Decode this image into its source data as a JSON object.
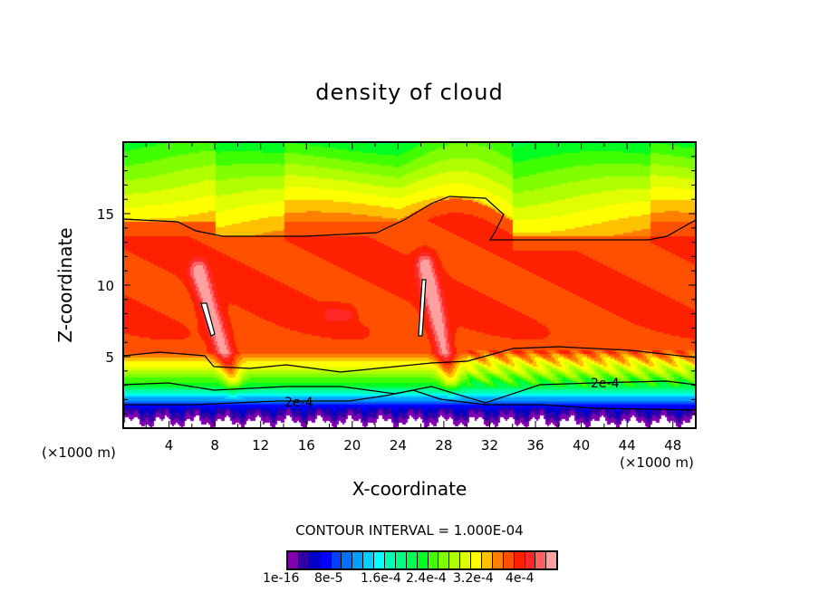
{
  "chart_data": {
    "type": "heatmap",
    "title": "density of cloud",
    "xlabel": "X-coordinate",
    "ylabel": "Z-coordinate",
    "x_unit": "(×1000 m)",
    "y_unit": "(×1000 m)",
    "xlim": [
      0,
      50
    ],
    "ylim": [
      0,
      20
    ],
    "x_ticks": [
      4,
      8,
      12,
      16,
      20,
      24,
      28,
      32,
      36,
      40,
      44,
      48
    ],
    "y_ticks": [
      5,
      10,
      15
    ],
    "contour_interval_label": "CONTOUR INTERVAL = 1.000E-04",
    "contour_labels": [
      "2e-4",
      "2e-4"
    ],
    "colorbar_labels": [
      "1e-16",
      "8e-5",
      "1.6e-4",
      "2.4e-4",
      "3.2e-4",
      "4e-4"
    ],
    "colors": [
      "#8000b0",
      "#3000a8",
      "#0000c8",
      "#0000ff",
      "#0040ff",
      "#0070ff",
      "#00a0ff",
      "#00d0ff",
      "#00ffff",
      "#00ffb0",
      "#00ff80",
      "#00ff50",
      "#00ff20",
      "#40ff00",
      "#80ff00",
      "#b0ff00",
      "#e0ff00",
      "#ffff00",
      "#ffc000",
      "#ff8000",
      "#ff5000",
      "#ff2000",
      "#ff2828",
      "#ff6060",
      "#ffa0a0"
    ]
  }
}
